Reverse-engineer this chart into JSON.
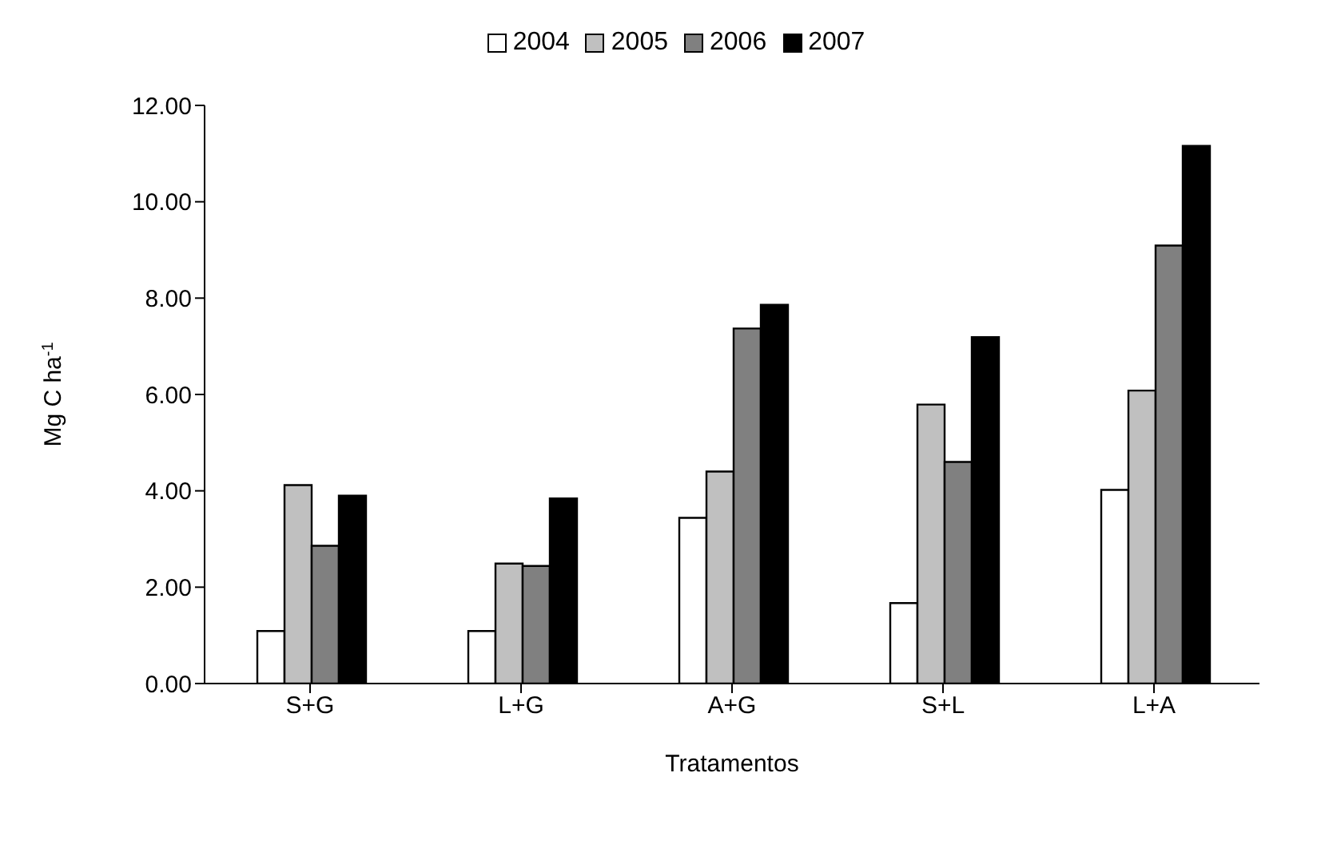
{
  "chart_data": {
    "type": "bar",
    "xlabel": "Tratamentos",
    "ylabel": "Mg C ha$^{-1}$",
    "categories": [
      "S+G",
      "L+G",
      "A+G",
      "S+L",
      "L+A"
    ],
    "series": [
      {
        "name": "2004",
        "color": "#ffffff",
        "values": [
          1.09,
          1.09,
          3.44,
          1.67,
          4.02
        ]
      },
      {
        "name": "2005",
        "color": "#c0c0c0",
        "values": [
          4.12,
          2.49,
          4.4,
          5.79,
          6.08
        ]
      },
      {
        "name": "2006",
        "color": "#808080",
        "values": [
          2.86,
          2.44,
          7.37,
          4.6,
          9.09
        ]
      },
      {
        "name": "2007",
        "color": "#000000",
        "values": [
          3.9,
          3.84,
          7.86,
          7.19,
          11.16
        ]
      }
    ],
    "ylim": [
      0,
      12
    ],
    "yticks": [
      {
        "value": 0,
        "label": "0.00"
      },
      {
        "value": 2,
        "label": "2.00"
      },
      {
        "value": 4,
        "label": "4.00"
      },
      {
        "value": 6,
        "label": "6.00"
      },
      {
        "value": 8,
        "label": "8.00"
      },
      {
        "value": 10,
        "label": "10.00"
      },
      {
        "value": 12,
        "label": "12.00"
      }
    ],
    "grid": false,
    "legend": "top"
  }
}
